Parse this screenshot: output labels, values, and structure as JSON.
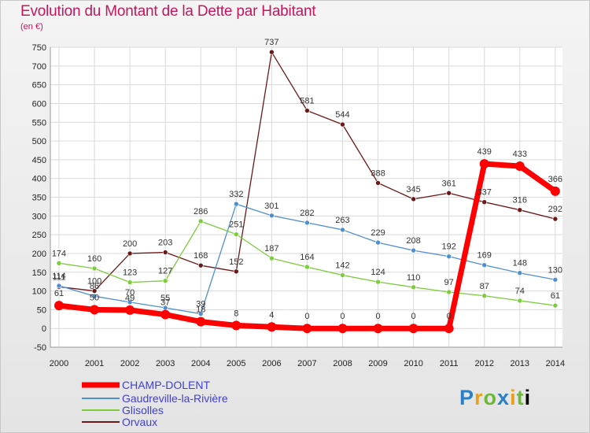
{
  "chart_data": {
    "type": "line",
    "title": "Evolution du Montant de la Dette par Habitant",
    "subtitle": "(en €)",
    "x": [
      "2000",
      "2001",
      "2002",
      "2003",
      "2004",
      "2005",
      "2006",
      "2007",
      "2008",
      "2009",
      "2010",
      "2011",
      "2012",
      "2013",
      "2014"
    ],
    "ylim": [
      -50,
      750
    ],
    "yticks": [
      -50,
      0,
      50,
      100,
      150,
      200,
      250,
      300,
      350,
      400,
      450,
      500,
      550,
      600,
      650,
      700,
      750
    ],
    "grid": true,
    "legend_position": "bottom-left",
    "series": [
      {
        "name": "CHAMP-DOLENT",
        "color": "#ff0000",
        "values": [
          61,
          50,
          49,
          37,
          18,
          8,
          4,
          0,
          0,
          0,
          0,
          0,
          439,
          433,
          366
        ]
      },
      {
        "name": "Gaudreville-la-Rivière",
        "color": "#4f8fd0",
        "values": [
          114,
          86,
          70,
          55,
          39,
          332,
          301,
          282,
          263,
          229,
          208,
          192,
          169,
          148,
          130
        ]
      },
      {
        "name": "Glisolles",
        "color": "#7ccc3c",
        "values": [
          174,
          160,
          123,
          127,
          286,
          251,
          187,
          164,
          142,
          124,
          110,
          97,
          87,
          74,
          61
        ]
      },
      {
        "name": "Orvaux",
        "color": "#6b1818",
        "values": [
          111,
          100,
          200,
          203,
          168,
          152,
          737,
          581,
          544,
          388,
          345,
          361,
          337,
          316,
          292
        ]
      }
    ]
  },
  "logo": {
    "letters": [
      "P",
      "r",
      "o",
      "x",
      "i",
      "t",
      "i"
    ]
  }
}
